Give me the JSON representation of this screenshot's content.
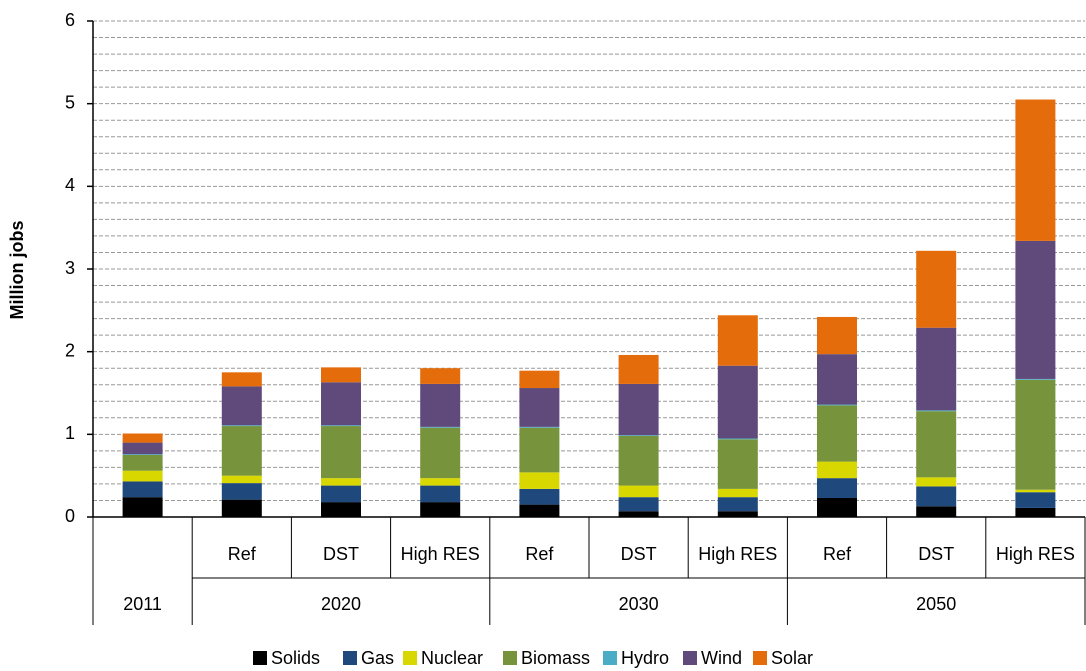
{
  "chart_data": {
    "type": "stacked_bar",
    "y_label": "Million jobs",
    "categories": [
      null,
      "Ref",
      "DST",
      "High RES",
      "Ref",
      "DST",
      "High RES",
      "Ref",
      "DST",
      "High RES"
    ],
    "category_groups": [
      "2011",
      "2020",
      "2020",
      "2020",
      "2030",
      "2030",
      "2030",
      "2050",
      "2050",
      "2050"
    ],
    "series": [
      {
        "name": "Solids",
        "color": "#000000",
        "values": [
          0.24,
          0.21,
          0.18,
          0.18,
          0.15,
          0.07,
          0.07,
          0.23,
          0.13,
          0.11
        ]
      },
      {
        "name": "Gas",
        "color": "#1f497d",
        "values": [
          0.19,
          0.2,
          0.2,
          0.2,
          0.19,
          0.17,
          0.17,
          0.24,
          0.24,
          0.19
        ]
      },
      {
        "name": "Nuclear",
        "color": "#d8d800",
        "values": [
          0.13,
          0.09,
          0.09,
          0.09,
          0.2,
          0.14,
          0.1,
          0.2,
          0.11,
          0.03
        ]
      },
      {
        "name": "Biomass",
        "color": "#77933c",
        "values": [
          0.19,
          0.6,
          0.63,
          0.61,
          0.54,
          0.6,
          0.6,
          0.68,
          0.8,
          1.33
        ]
      },
      {
        "name": "Hydro",
        "color": "#4bacc6",
        "values": [
          0.01,
          0.01,
          0.01,
          0.01,
          0.01,
          0.01,
          0.01,
          0.01,
          0.01,
          0.01
        ]
      },
      {
        "name": "Wind",
        "color": "#604a7b",
        "values": [
          0.14,
          0.47,
          0.52,
          0.52,
          0.47,
          0.62,
          0.88,
          0.61,
          1.0,
          1.67
        ]
      },
      {
        "name": "Solar",
        "color": "#e46c0a",
        "values": [
          0.11,
          0.17,
          0.18,
          0.19,
          0.21,
          0.35,
          0.61,
          0.45,
          0.93,
          1.71
        ]
      }
    ],
    "ylim": [
      0,
      6
    ],
    "yticks": [
      0,
      1,
      2,
      3,
      4,
      5,
      6
    ],
    "grid_lines": [
      0.2,
      0.4,
      0.6,
      0.8,
      1,
      1.2,
      1.4,
      1.6,
      1.8,
      2,
      2.2,
      2.4,
      2.6,
      2.8,
      3,
      3.2,
      3.4,
      3.6,
      3.8,
      4,
      4.2,
      4.4,
      4.6,
      4.8,
      5,
      5.2,
      5.4,
      5.6,
      5.8,
      6
    ],
    "legend": "bottom"
  }
}
